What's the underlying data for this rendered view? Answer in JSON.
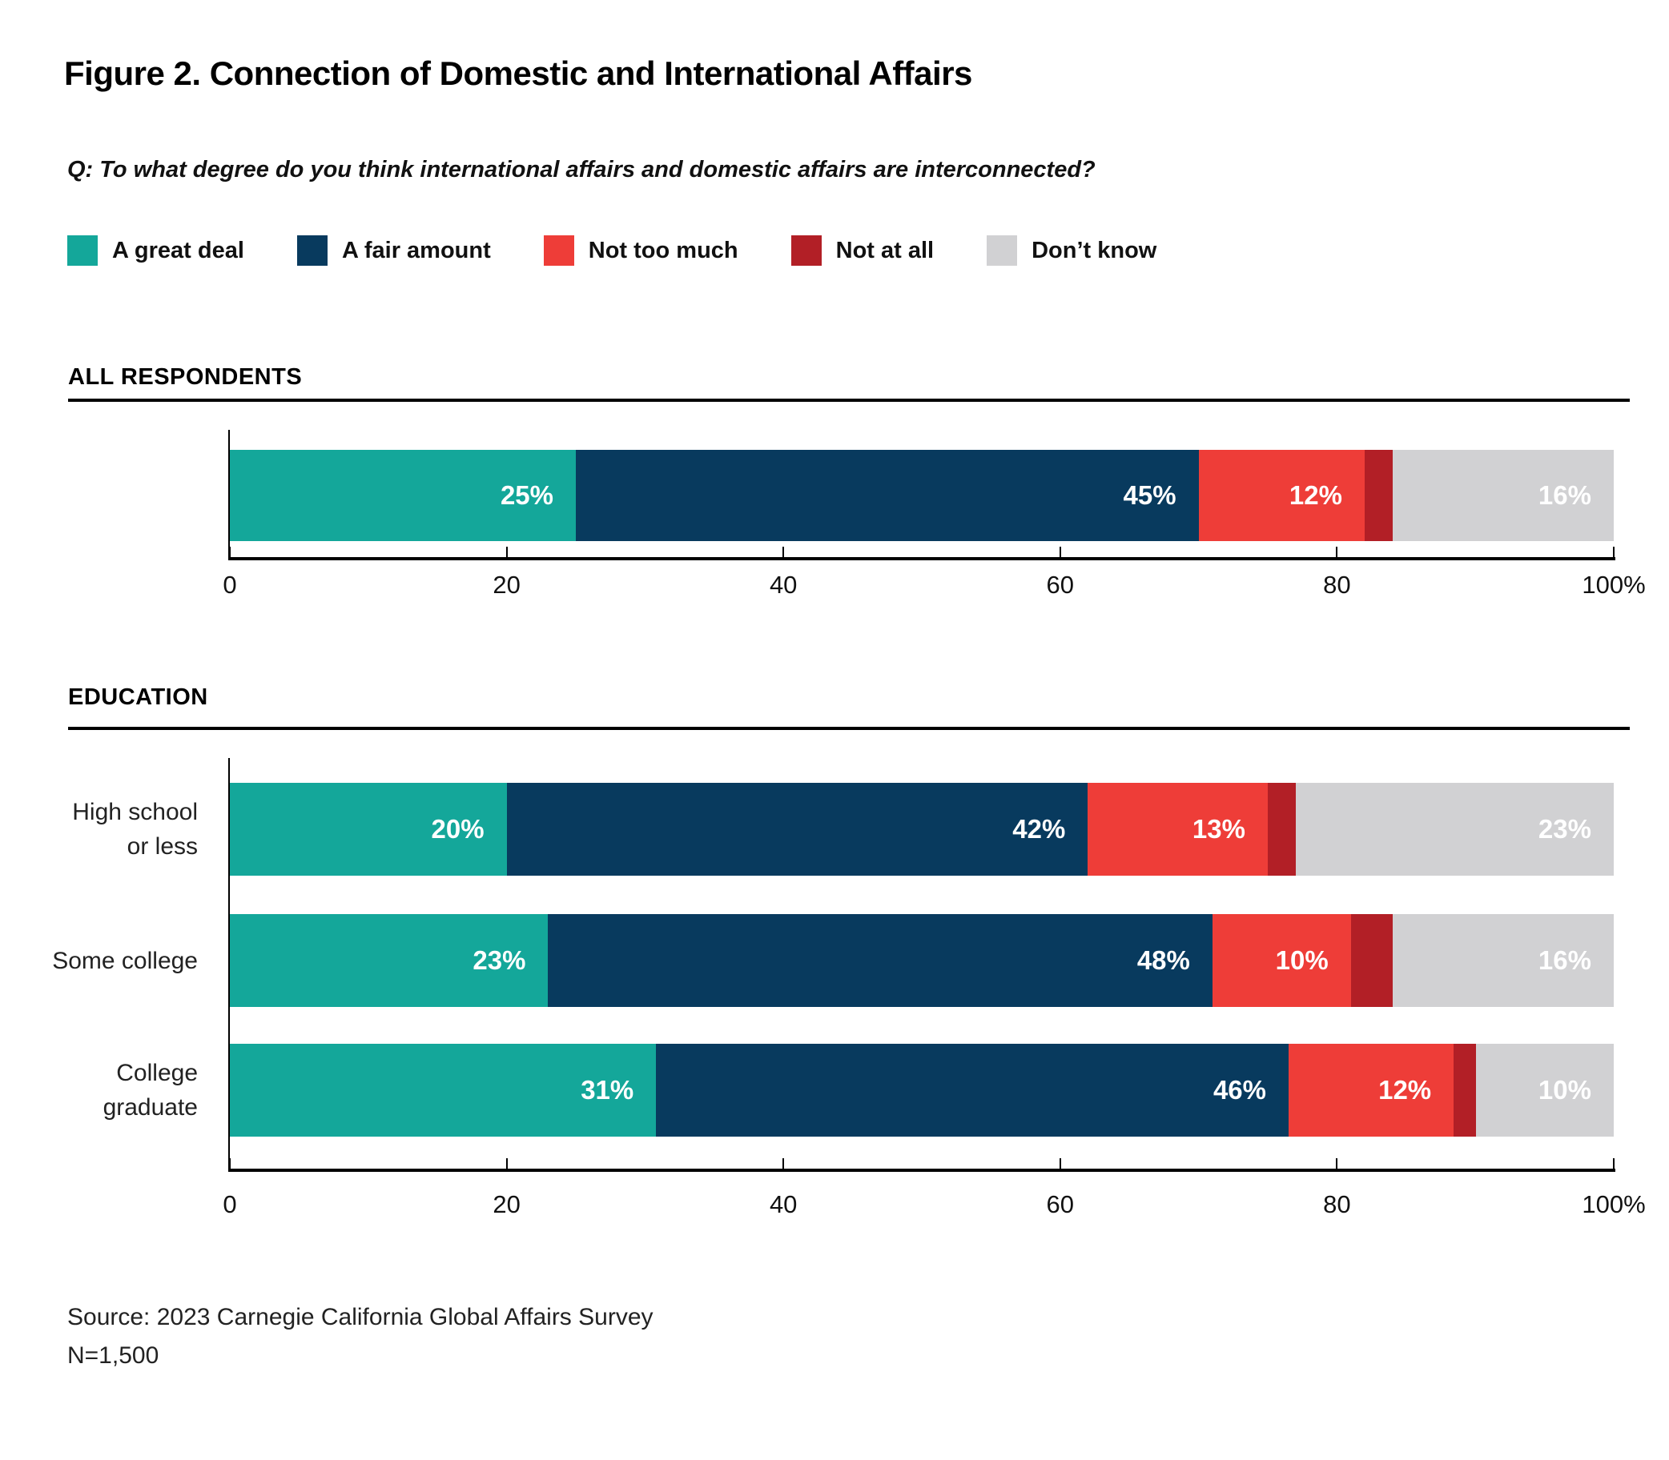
{
  "title": "Figure 2. Connection of Domestic and International Affairs",
  "question": "Q: To what degree do you think international affairs and domestic affairs are interconnected?",
  "colors": {
    "great_deal": "#14A79A",
    "fair_amount": "#083A5E",
    "not_too_much": "#EE3D38",
    "not_at_all": "#B21F26",
    "dont_know": "#D1D1D3",
    "text": "#111111",
    "bar_label": "#FFFFFF"
  },
  "legend": {
    "items": [
      {
        "key": "great_deal",
        "label": "A great deal",
        "color": "#14A79A"
      },
      {
        "key": "fair_amount",
        "label": "A fair amount",
        "color": "#083A5E"
      },
      {
        "key": "not_too_much",
        "label": "Not too much",
        "color": "#EE3D38"
      },
      {
        "key": "not_at_all",
        "label": "Not at all",
        "color": "#B21F26"
      },
      {
        "key": "dont_know",
        "label": "Don’t know",
        "color": "#D1D1D3"
      }
    ]
  },
  "axis": {
    "ticks": [
      {
        "value": 0,
        "label": "0"
      },
      {
        "value": 20,
        "label": "20"
      },
      {
        "value": 40,
        "label": "40"
      },
      {
        "value": 60,
        "label": "60"
      },
      {
        "value": 80,
        "label": "80"
      },
      {
        "value": 100,
        "label": "100%"
      }
    ]
  },
  "sections": [
    {
      "id": "all-respondents",
      "heading": "ALL RESPONDENTS",
      "rows": [
        {
          "category_lines": [],
          "values": [
            25,
            45,
            12,
            2,
            16
          ],
          "labels": [
            "25%",
            "45%",
            "12%",
            "",
            "16%"
          ]
        }
      ]
    },
    {
      "id": "education",
      "heading": "EDUCATION",
      "rows": [
        {
          "category_lines": [
            "High school",
            "or less"
          ],
          "values": [
            20,
            42,
            13,
            2,
            23
          ],
          "labels": [
            "20%",
            "42%",
            "13%",
            "",
            "23%"
          ]
        },
        {
          "category_lines": [
            "Some college"
          ],
          "values": [
            23,
            48,
            10,
            3,
            16
          ],
          "labels": [
            "23%",
            "48%",
            "10%",
            "",
            "16%"
          ]
        },
        {
          "category_lines": [
            "College",
            "graduate"
          ],
          "values": [
            31,
            46,
            12,
            1,
            10
          ],
          "labels": [
            "31%",
            "46%",
            "12%",
            "",
            "10%"
          ]
        }
      ]
    }
  ],
  "source": {
    "line1": "Source: 2023 Carnegie California Global Affairs Survey",
    "line2": "N=1,500"
  },
  "chart_data": {
    "type": "bar",
    "orientation": "horizontal",
    "stacked": true,
    "title": "Figure 2. Connection of Domestic and International Affairs",
    "subtitle": "Q: To what degree do you think international affairs and domestic affairs are interconnected?",
    "xlim": [
      0,
      100
    ],
    "x_ticks": [
      0,
      20,
      40,
      60,
      80,
      100
    ],
    "x_tick_labels": [
      "0",
      "20",
      "40",
      "60",
      "80",
      "100%"
    ],
    "legend_position": "top",
    "grid": false,
    "series_names": [
      "A great deal",
      "A fair amount",
      "Not too much",
      "Not at all",
      "Don’t know"
    ],
    "series_colors": [
      "#14A79A",
      "#083A5E",
      "#EE3D38",
      "#B21F26",
      "#D1D1D3"
    ],
    "groups": [
      {
        "group": "ALL RESPONDENTS",
        "categories": [
          "All respondents"
        ],
        "series": [
          {
            "name": "A great deal",
            "values": [
              25
            ]
          },
          {
            "name": "A fair amount",
            "values": [
              45
            ]
          },
          {
            "name": "Not too much",
            "values": [
              12
            ]
          },
          {
            "name": "Not at all",
            "values": [
              2
            ]
          },
          {
            "name": "Don’t know",
            "values": [
              16
            ]
          }
        ]
      },
      {
        "group": "EDUCATION",
        "categories": [
          "High school or less",
          "Some college",
          "College graduate"
        ],
        "series": [
          {
            "name": "A great deal",
            "values": [
              20,
              23,
              31
            ]
          },
          {
            "name": "A fair amount",
            "values": [
              42,
              48,
              46
            ]
          },
          {
            "name": "Not too much",
            "values": [
              13,
              10,
              12
            ]
          },
          {
            "name": "Not at all",
            "values": [
              2,
              3,
              1
            ]
          },
          {
            "name": "Don’t know",
            "values": [
              23,
              16,
              10
            ]
          }
        ]
      }
    ],
    "source": "Source: 2023 Carnegie California Global Affairs Survey",
    "n": "N=1,500"
  }
}
